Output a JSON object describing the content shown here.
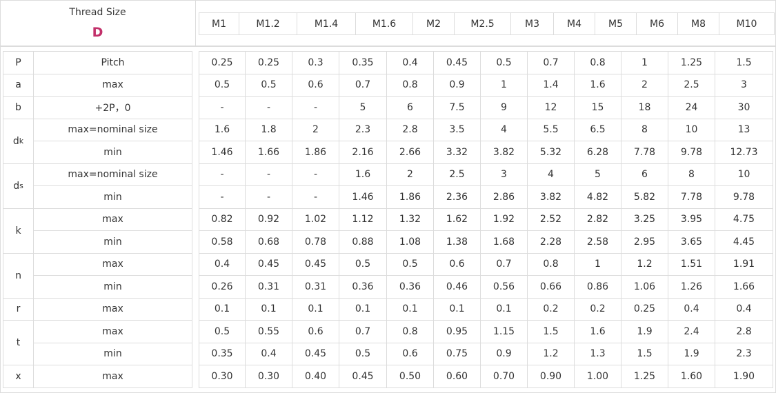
{
  "header": {
    "title": "Thread Size",
    "symbol": "D",
    "sizes": [
      "M1",
      "M1.2",
      "M1.4",
      "M1.6",
      "M2",
      "M2.5",
      "M3",
      "M4",
      "M5",
      "M6",
      "M8",
      "M10"
    ]
  },
  "table": {
    "groups": [
      {
        "symbol": {
          "text": "P"
        },
        "rows": [
          {
            "label": "Pitch",
            "values": [
              "0.25",
              "0.25",
              "0.3",
              "0.35",
              "0.4",
              "0.45",
              "0.5",
              "0.7",
              "0.8",
              "1",
              "1.25",
              "1.5"
            ]
          }
        ]
      },
      {
        "symbol": {
          "text": "a"
        },
        "rows": [
          {
            "label": "max",
            "values": [
              "0.5",
              "0.5",
              "0.6",
              "0.7",
              "0.8",
              "0.9",
              "1",
              "1.4",
              "1.6",
              "2",
              "2.5",
              "3"
            ]
          }
        ]
      },
      {
        "symbol": {
          "text": "b"
        },
        "rows": [
          {
            "label": "+2P，0",
            "values": [
              "-",
              "-",
              "-",
              "5",
              "6",
              "7.5",
              "9",
              "12",
              "15",
              "18",
              "24",
              "30"
            ]
          }
        ]
      },
      {
        "symbol": {
          "text": "d",
          "sub": "k"
        },
        "rows": [
          {
            "label": "max=nominal size",
            "values": [
              "1.6",
              "1.8",
              "2",
              "2.3",
              "2.8",
              "3.5",
              "4",
              "5.5",
              "6.5",
              "8",
              "10",
              "13"
            ]
          },
          {
            "label": "min",
            "values": [
              "1.46",
              "1.66",
              "1.86",
              "2.16",
              "2.66",
              "3.32",
              "3.82",
              "5.32",
              "6.28",
              "7.78",
              "9.78",
              "12.73"
            ]
          }
        ]
      },
      {
        "symbol": {
          "text": "d",
          "sub": "s"
        },
        "rows": [
          {
            "label": "max=nominal size",
            "values": [
              "-",
              "-",
              "-",
              "1.6",
              "2",
              "2.5",
              "3",
              "4",
              "5",
              "6",
              "8",
              "10"
            ]
          },
          {
            "label": "min",
            "values": [
              "-",
              "-",
              "-",
              "1.46",
              "1.86",
              "2.36",
              "2.86",
              "3.82",
              "4.82",
              "5.82",
              "7.78",
              "9.78"
            ]
          }
        ]
      },
      {
        "symbol": {
          "text": "k"
        },
        "rows": [
          {
            "label": "max",
            "values": [
              "0.82",
              "0.92",
              "1.02",
              "1.12",
              "1.32",
              "1.62",
              "1.92",
              "2.52",
              "2.82",
              "3.25",
              "3.95",
              "4.75"
            ]
          },
          {
            "label": "min",
            "values": [
              "0.58",
              "0.68",
              "0.78",
              "0.88",
              "1.08",
              "1.38",
              "1.68",
              "2.28",
              "2.58",
              "2.95",
              "3.65",
              "4.45"
            ]
          }
        ]
      },
      {
        "symbol": {
          "text": "n"
        },
        "rows": [
          {
            "label": "max",
            "values": [
              "0.4",
              "0.45",
              "0.45",
              "0.5",
              "0.5",
              "0.6",
              "0.7",
              "0.8",
              "1",
              "1.2",
              "1.51",
              "1.91"
            ]
          },
          {
            "label": "min",
            "values": [
              "0.26",
              "0.31",
              "0.31",
              "0.36",
              "0.36",
              "0.46",
              "0.56",
              "0.66",
              "0.86",
              "1.06",
              "1.26",
              "1.66"
            ]
          }
        ]
      },
      {
        "symbol": {
          "text": "r"
        },
        "rows": [
          {
            "label": "max",
            "values": [
              "0.1",
              "0.1",
              "0.1",
              "0.1",
              "0.1",
              "0.1",
              "0.1",
              "0.2",
              "0.2",
              "0.25",
              "0.4",
              "0.4"
            ]
          }
        ]
      },
      {
        "symbol": {
          "text": "t"
        },
        "rows": [
          {
            "label": "max",
            "values": [
              "0.5",
              "0.55",
              "0.6",
              "0.7",
              "0.8",
              "0.95",
              "1.15",
              "1.5",
              "1.6",
              "1.9",
              "2.4",
              "2.8"
            ]
          },
          {
            "label": "min",
            "values": [
              "0.35",
              "0.4",
              "0.45",
              "0.5",
              "0.6",
              "0.75",
              "0.9",
              "1.2",
              "1.3",
              "1.5",
              "1.9",
              "2.3"
            ]
          }
        ]
      },
      {
        "symbol": {
          "text": "x"
        },
        "rows": [
          {
            "label": "max",
            "values": [
              "0.30",
              "0.30",
              "0.40",
              "0.45",
              "0.50",
              "0.60",
              "0.70",
              "0.90",
              "1.00",
              "1.25",
              "1.60",
              "1.90"
            ]
          }
        ]
      }
    ]
  }
}
